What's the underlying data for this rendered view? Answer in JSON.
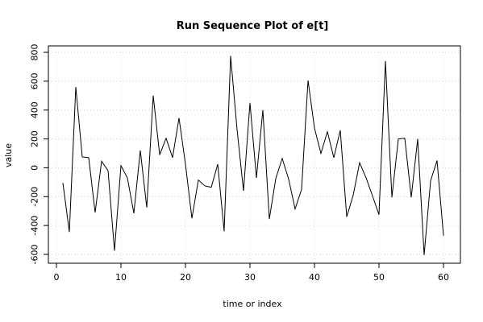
{
  "chart_data": {
    "type": "line",
    "title": "Run Sequence Plot of e[t]",
    "xlabel": "time or index",
    "ylabel": "value",
    "xlim": [
      0,
      60
    ],
    "ylim": [
      -650,
      800
    ],
    "x_ticks": [
      0,
      10,
      20,
      30,
      40,
      50,
      60
    ],
    "y_ticks": [
      -600,
      -400,
      -200,
      0,
      200,
      400,
      600,
      800
    ],
    "grid": true,
    "series": [
      {
        "x": [
          1,
          2,
          3,
          4,
          5,
          6,
          7,
          8,
          9,
          10,
          11,
          12,
          13,
          14,
          15,
          16,
          17,
          18,
          19,
          20,
          21,
          22,
          23,
          24,
          25,
          26,
          27,
          28,
          29,
          30,
          31,
          32,
          33,
          34,
          35,
          36,
          37,
          38,
          39,
          40,
          41,
          42,
          43,
          44,
          45,
          46,
          47,
          48,
          49,
          50,
          51,
          52,
          53,
          54,
          55,
          56,
          57,
          58,
          59,
          60
        ],
        "values": [
          -105,
          -445,
          560,
          75,
          70,
          -310,
          45,
          -20,
          -575,
          15,
          -70,
          -315,
          120,
          -275,
          500,
          90,
          205,
          70,
          345,
          25,
          -350,
          -85,
          -125,
          -135,
          25,
          -440,
          775,
          265,
          -160,
          450,
          -70,
          400,
          -355,
          -75,
          65,
          -80,
          -285,
          -150,
          605,
          275,
          100,
          250,
          70,
          260,
          -340,
          -190,
          35,
          -70,
          -195,
          -325,
          740,
          -205,
          200,
          205,
          -205,
          200,
          -605,
          -90,
          50,
          -470
        ]
      }
    ]
  }
}
